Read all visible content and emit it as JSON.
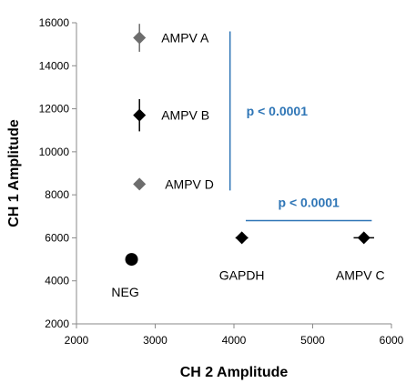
{
  "chart_data": {
    "type": "scatter",
    "title": "",
    "xlabel": "CH 2 Amplitude",
    "ylabel": "CH 1 Amplitude",
    "xlim": [
      2000,
      6000
    ],
    "ylim": [
      2000,
      16000
    ],
    "xticks": [
      "2000",
      "3000",
      "4000",
      "5000",
      "6000"
    ],
    "yticks": [
      "2000",
      "4000",
      "6000",
      "8000",
      "10000",
      "12000",
      "14000",
      "16000"
    ],
    "grid": false,
    "colors": {
      "dark": "#000000",
      "gray": "#6d6d6d",
      "annotation": "#2e75b6"
    },
    "points": [
      {
        "label": "AMPV A",
        "x": 2800,
        "y": 15300,
        "yerr": 650,
        "xerr": 0,
        "marker": "diamond",
        "color": "gray"
      },
      {
        "label": "AMPV B",
        "x": 2800,
        "y": 11700,
        "yerr": 750,
        "xerr": 0,
        "marker": "diamond",
        "color": "dark"
      },
      {
        "label": "AMPV D",
        "x": 2800,
        "y": 8500,
        "yerr": 0,
        "xerr": 0,
        "marker": "diamond",
        "color": "gray"
      },
      {
        "label": "NEG",
        "x": 2700,
        "y": 5000,
        "yerr": 0,
        "xerr": 0,
        "marker": "circle",
        "color": "dark"
      },
      {
        "label": "GAPDH",
        "x": 4100,
        "y": 6000,
        "yerr": 0,
        "xerr": 80,
        "marker": "diamond",
        "color": "dark"
      },
      {
        "label": "AMPV C",
        "x": 5650,
        "y": 6000,
        "yerr": 0,
        "xerr": 130,
        "marker": "diamond",
        "color": "dark"
      }
    ],
    "annotations": [
      {
        "text": "p < 0.0001",
        "orientation": "vertical",
        "x": 3950,
        "y_from": 8200,
        "y_to": 15600
      },
      {
        "text": "p < 0.0001",
        "orientation": "horizontal",
        "y": 6800,
        "x_from": 4150,
        "x_to": 5750
      }
    ]
  }
}
